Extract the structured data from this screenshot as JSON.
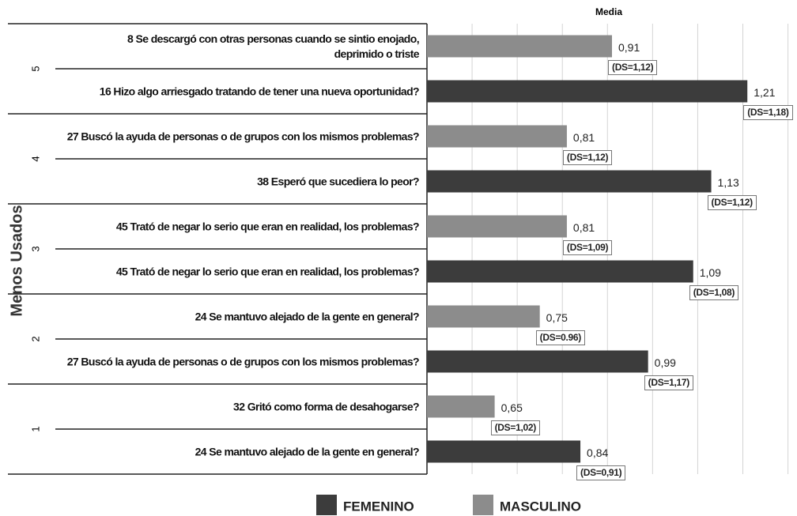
{
  "chart_data": {
    "type": "bar",
    "orientation": "horizontal",
    "title": "Media",
    "ylabel": "Menos Usados",
    "group_labels": [
      "5",
      "4",
      "3",
      "2",
      "1"
    ],
    "categories": [
      "8 Se descargó con otras personas cuando se sintio enojado,\ndeprimido o triste",
      "16 Hizo algo arriesgado tratando de tener una nueva oportunidad?",
      "27 Buscó la ayuda de personas o de grupos con los mismos problemas?",
      "38 Esperó que sucediera lo peor?",
      "45 Trató de negar lo serio que eran en realidad, los problemas?",
      "45 Trató de negar lo serio que eran en realidad, los problemas?",
      "24 Se mantuvo alejado de la gente en general?",
      "27 Buscó la ayuda de personas o de grupos con los mismos problemas?",
      "32 Gritó como forma de desahogarse?",
      "24 Se mantuvo alejado de la gente en general?"
    ],
    "series": [
      {
        "name": "FEMENINO",
        "color": "#3c3c3c",
        "values": [
          null,
          1.21,
          null,
          1.13,
          null,
          1.09,
          null,
          0.99,
          null,
          0.84
        ],
        "value_labels": [
          null,
          "1,21",
          null,
          "1,13",
          null,
          "1,09",
          null,
          "0,99",
          null,
          "0,84"
        ]
      },
      {
        "name": "MASCULINO",
        "color": "#8c8c8c",
        "values": [
          0.91,
          null,
          0.81,
          null,
          0.81,
          null,
          0.75,
          null,
          0.65,
          null
        ],
        "value_labels": [
          "0,91",
          null,
          "0,81",
          null,
          "0,81",
          null,
          "0,75",
          null,
          "0,65",
          null
        ]
      }
    ],
    "ds_labels": [
      "(DS=1,12)",
      "(DS=1,18)",
      "(DS=1,12)",
      "(DS=1,12)",
      "(DS=1,09)",
      "(DS=1,08)",
      "(DS=0.96)",
      "(DS=1,17)",
      "(DS=1,02)",
      "(DS=0,91)"
    ],
    "xlim": [
      0.5,
      1.32
    ],
    "xticks": [
      0.5,
      0.6,
      0.7,
      0.8,
      0.9,
      1.0,
      1.1,
      1.2,
      1.3
    ],
    "grid": true,
    "legend": "bottom"
  }
}
